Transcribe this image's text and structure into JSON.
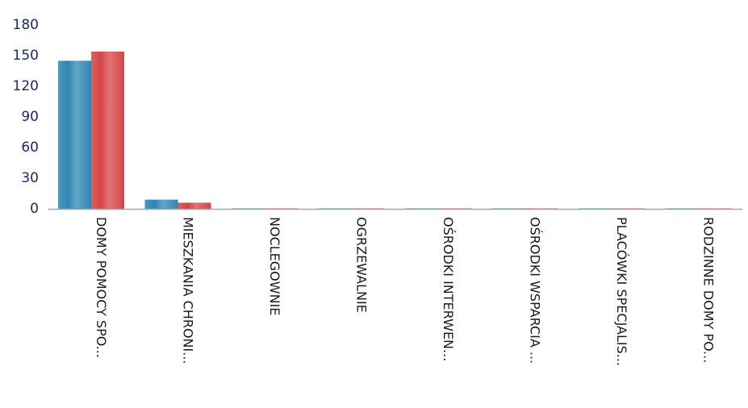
{
  "chart_data": {
    "type": "bar",
    "categories": [
      "DOMY POMOCY SPO...",
      "MIESZKANIA CHRONI...",
      "NOCLEGOWNIE",
      "OGRZEWALNIE",
      "OŚRODKI INTERWEN...",
      "OŚRODKI WSPARCIA ...",
      "PLACÓWKI SPECJALIS...",
      "RODZINNE DOMY PO..."
    ],
    "series": [
      {
        "values": [
          145,
          9,
          0,
          0,
          0,
          0,
          0,
          0
        ],
        "color": "#2f86b3"
      },
      {
        "values": [
          154,
          6,
          0,
          0,
          0,
          0,
          0,
          0
        ],
        "color": "#d64545"
      }
    ],
    "y_ticks": [
      0,
      30,
      60,
      90,
      120,
      150,
      180
    ],
    "ylim": [
      0,
      180
    ],
    "grid": false,
    "legend": false,
    "colors": {
      "axis": "#9aa7b8",
      "tick_text": "#1a2a6c",
      "category_text": "#1a1a1a"
    }
  }
}
